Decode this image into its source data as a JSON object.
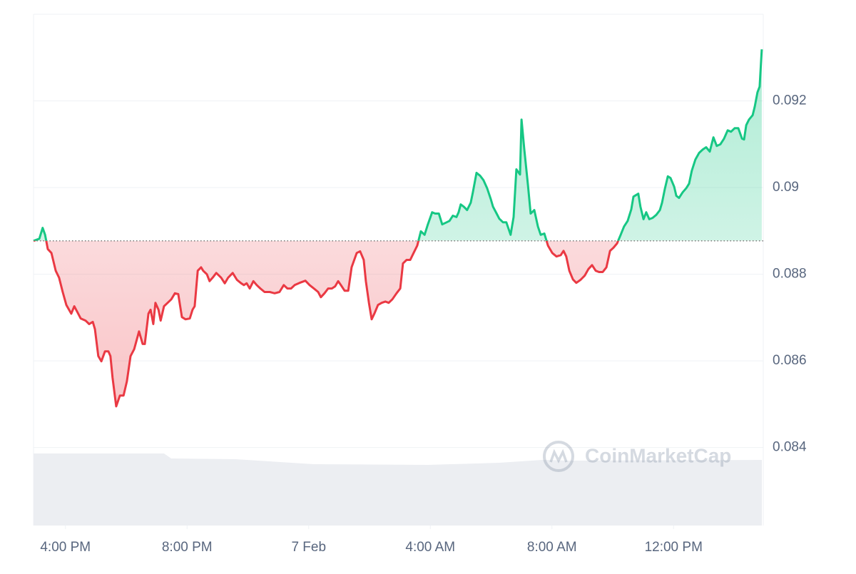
{
  "chart_data": {
    "type": "line",
    "x": [
      14.95,
      15.14,
      15.25,
      15.33,
      15.42,
      15.54,
      15.68,
      15.79,
      15.91,
      16.03,
      16.19,
      16.29,
      16.38,
      16.5,
      16.66,
      16.78,
      16.9,
      16.97,
      17.08,
      17.18,
      17.3,
      17.41,
      17.48,
      17.55,
      17.67,
      17.79,
      17.91,
      18.02,
      18.14,
      18.26,
      18.42,
      18.54,
      18.61,
      18.73,
      18.8,
      18.89,
      18.96,
      19.06,
      19.13,
      19.24,
      19.36,
      19.48,
      19.6,
      19.71,
      19.83,
      19.95,
      20.09,
      20.18,
      20.25,
      20.35,
      20.46,
      20.53,
      20.65,
      20.74,
      20.84,
      20.96,
      21.12,
      21.24,
      21.35,
      21.5,
      21.64,
      21.78,
      21.87,
      21.96,
      22.06,
      22.18,
      22.29,
      22.41,
      22.55,
      22.72,
      22.88,
      23.04,
      23.18,
      23.3,
      23.42,
      23.54,
      23.7,
      23.89,
      24.03,
      24.17,
      24.31,
      24.4,
      24.52,
      24.64,
      24.76,
      24.87,
      24.97,
      25.06,
      25.18,
      25.3,
      25.41,
      25.58,
      25.69,
      25.81,
      25.88,
      25.98,
      26.07,
      26.16,
      26.28,
      26.4,
      26.52,
      26.63,
      26.75,
      26.89,
      27.01,
      27.1,
      27.22,
      27.34,
      27.45,
      27.57,
      27.69,
      27.81,
      27.92,
      28.06,
      28.16,
      28.28,
      28.39,
      28.51,
      28.63,
      28.74,
      28.86,
      28.93,
      29.0,
      29.1,
      29.21,
      29.33,
      29.4,
      29.52,
      29.64,
      29.75,
      29.87,
      29.99,
      30.06,
      30.18,
      30.27,
      30.39,
      30.5,
      30.64,
      30.74,
      30.83,
      30.95,
      31.0,
      31.09,
      31.21,
      31.3,
      31.42,
      31.54,
      31.63,
      31.75,
      31.87,
      32.01,
      32.15,
      32.29,
      32.38,
      32.47,
      32.57,
      32.69,
      32.8,
      32.94,
      33.08,
      33.2,
      33.32,
      33.44,
      33.55,
      33.67,
      33.79,
      33.91,
      34.02,
      34.14,
      34.26,
      34.37,
      34.49,
      34.61,
      34.68,
      34.84,
      34.91,
      35.01,
      35.1,
      35.2,
      35.31,
      35.43,
      35.55,
      35.62,
      35.71,
      35.81,
      35.9,
      36.02,
      36.09,
      36.18,
      36.3,
      36.42,
      36.51,
      36.6,
      36.72,
      36.84,
      36.96,
      37.07,
      37.19,
      37.31,
      37.42,
      37.54,
      37.66,
      37.78,
      37.89,
      38.01,
      38.13,
      38.25,
      38.32,
      38.39,
      38.48,
      38.6,
      38.67,
      38.76,
      38.83,
      38.9
    ],
    "values": [
      0.08877,
      0.08882,
      0.08907,
      0.08891,
      0.08858,
      0.08849,
      0.08808,
      0.08792,
      0.08759,
      0.08729,
      0.08709,
      0.08726,
      0.08714,
      0.08698,
      0.08693,
      0.08685,
      0.0869,
      0.08673,
      0.08611,
      0.08599,
      0.08622,
      0.08622,
      0.08611,
      0.08561,
      0.08495,
      0.0852,
      0.0852,
      0.08553,
      0.08611,
      0.08627,
      0.08668,
      0.08639,
      0.08639,
      0.08709,
      0.08718,
      0.08685,
      0.08734,
      0.08718,
      0.08693,
      0.08726,
      0.08734,
      0.08742,
      0.08756,
      0.08754,
      0.08701,
      0.08696,
      0.08698,
      0.08718,
      0.08726,
      0.08808,
      0.08816,
      0.08808,
      0.088,
      0.08784,
      0.08792,
      0.08803,
      0.08792,
      0.08779,
      0.08792,
      0.08803,
      0.08787,
      0.08779,
      0.08775,
      0.08779,
      0.08767,
      0.08784,
      0.08775,
      0.08767,
      0.08759,
      0.08759,
      0.08756,
      0.08759,
      0.08775,
      0.08767,
      0.08767,
      0.08775,
      0.0878,
      0.08785,
      0.08775,
      0.08767,
      0.08759,
      0.08747,
      0.08756,
      0.08767,
      0.08767,
      0.08772,
      0.08784,
      0.08775,
      0.08762,
      0.08762,
      0.08816,
      0.08849,
      0.08853,
      0.08833,
      0.08784,
      0.08734,
      0.08696,
      0.08709,
      0.08729,
      0.08734,
      0.08737,
      0.08734,
      0.08742,
      0.08756,
      0.08767,
      0.08825,
      0.08833,
      0.08833,
      0.08849,
      0.08866,
      0.08899,
      0.08891,
      0.08915,
      0.08943,
      0.0894,
      0.0894,
      0.08915,
      0.08919,
      0.08923,
      0.08935,
      0.08932,
      0.08943,
      0.08961,
      0.08956,
      0.08948,
      0.08965,
      0.08989,
      0.09034,
      0.09027,
      0.09017,
      0.08998,
      0.08973,
      0.08956,
      0.0894,
      0.08928,
      0.0892,
      0.0892,
      0.08891,
      0.08932,
      0.09042,
      0.0903,
      0.09157,
      0.09088,
      0.09006,
      0.0894,
      0.08948,
      0.0891,
      0.08891,
      0.08894,
      0.08866,
      0.08849,
      0.08841,
      0.08844,
      0.08854,
      0.08841,
      0.08808,
      0.08788,
      0.0878,
      0.08787,
      0.08797,
      0.08812,
      0.08821,
      0.08808,
      0.08805,
      0.08805,
      0.08816,
      0.08854,
      0.08861,
      0.08871,
      0.08891,
      0.0891,
      0.08923,
      0.0895,
      0.08979,
      0.08986,
      0.08956,
      0.08927,
      0.08943,
      0.08927,
      0.0893,
      0.08937,
      0.08948,
      0.08965,
      0.08996,
      0.09026,
      0.09022,
      0.09002,
      0.08981,
      0.08976,
      0.08989,
      0.08999,
      0.09009,
      0.09039,
      0.09065,
      0.0908,
      0.09088,
      0.09093,
      0.09083,
      0.09116,
      0.09096,
      0.091,
      0.09113,
      0.09132,
      0.09129,
      0.09137,
      0.09137,
      0.09113,
      0.09111,
      0.09144,
      0.09157,
      0.09167,
      0.09187,
      0.0922,
      0.09233,
      0.09319
    ],
    "reference_line": 0.08877,
    "up_color": "#16c784",
    "down_color": "#ea3943",
    "xlim": [
      14.95,
      38.95
    ],
    "xticks": [
      {
        "value": 16,
        "label": "4:00 PM"
      },
      {
        "value": 20,
        "label": "8:00 PM"
      },
      {
        "value": 24,
        "label": "7 Feb"
      },
      {
        "value": 28,
        "label": "4:00 AM"
      },
      {
        "value": 32,
        "label": "8:00 AM"
      },
      {
        "value": 36,
        "label": "12:00 PM"
      }
    ],
    "ylim": [
      0.0822,
      0.094
    ],
    "yticks": [
      0.084,
      0.086,
      0.088,
      0.09,
      0.092
    ],
    "grid": true,
    "watermark": "CoinMarketCap"
  }
}
